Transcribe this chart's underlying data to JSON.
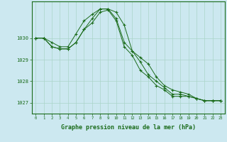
{
  "background_color": "#cce8f0",
  "grid_color": "#aad4c8",
  "line_color": "#1a6b1a",
  "marker_color": "#1a6b1a",
  "xlabel": "Graphe pression niveau de la mer (hPa)",
  "xlabel_fontsize": 6.0,
  "xlabel_color": "#1a6b1a",
  "tick_color": "#1a6b1a",
  "ylim": [
    1026.5,
    1031.7
  ],
  "xlim": [
    -0.5,
    23.5
  ],
  "yticks": [
    1027,
    1028,
    1029,
    1030
  ],
  "xticks": [
    0,
    1,
    2,
    3,
    4,
    5,
    6,
    7,
    8,
    9,
    10,
    11,
    12,
    13,
    14,
    15,
    16,
    17,
    18,
    19,
    20,
    21,
    22,
    23
  ],
  "series": [
    [
      1030.0,
      1030.0,
      1029.8,
      1029.6,
      1029.6,
      1030.2,
      1030.8,
      1031.1,
      1031.35,
      1031.35,
      1031.2,
      1030.6,
      1029.4,
      1029.1,
      1028.8,
      1028.2,
      1027.8,
      1027.6,
      1027.5,
      1027.4,
      1027.2,
      1027.1,
      1027.1,
      1027.1
    ],
    [
      1030.0,
      1030.0,
      1029.6,
      1029.5,
      1029.5,
      1029.8,
      1030.4,
      1030.9,
      1031.35,
      1031.35,
      1030.9,
      1029.8,
      1029.4,
      1028.9,
      1028.3,
      1028.0,
      1027.7,
      1027.4,
      1027.4,
      1027.3,
      1027.2,
      1027.1,
      1027.1,
      1027.1
    ],
    [
      1030.0,
      1030.0,
      1029.6,
      1029.5,
      1029.5,
      1029.8,
      1030.4,
      1030.7,
      1031.2,
      1031.3,
      1030.8,
      1029.6,
      1029.2,
      1028.5,
      1028.2,
      1027.8,
      1027.6,
      1027.3,
      1027.3,
      1027.3,
      1027.2,
      1027.1,
      1027.1,
      1027.1
    ]
  ]
}
